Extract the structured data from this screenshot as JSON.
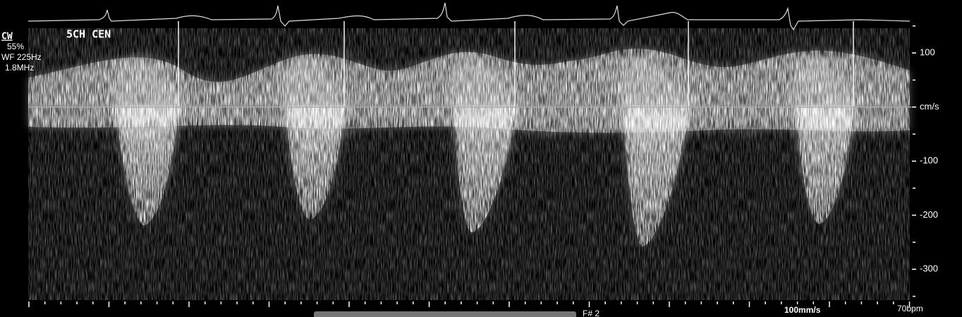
{
  "overlay": {
    "mode": "CW",
    "power": "55%",
    "wall_filter": "WF 225Hz",
    "frequency": "1.8MHz",
    "view": "5CH CEN"
  },
  "scale": {
    "ylim": [
      198,
      -357
    ],
    "ticks": [
      100,
      {
        "value": 0,
        "label": "cm/s"
      },
      -100,
      -200,
      -300
    ],
    "minor_ticks": [
      150,
      50,
      -50,
      -150,
      -250,
      -350
    ]
  },
  "footer": {
    "sweep_speed": "100mm/s",
    "heart_rate": "70bpm",
    "frame": "F# 2"
  }
}
